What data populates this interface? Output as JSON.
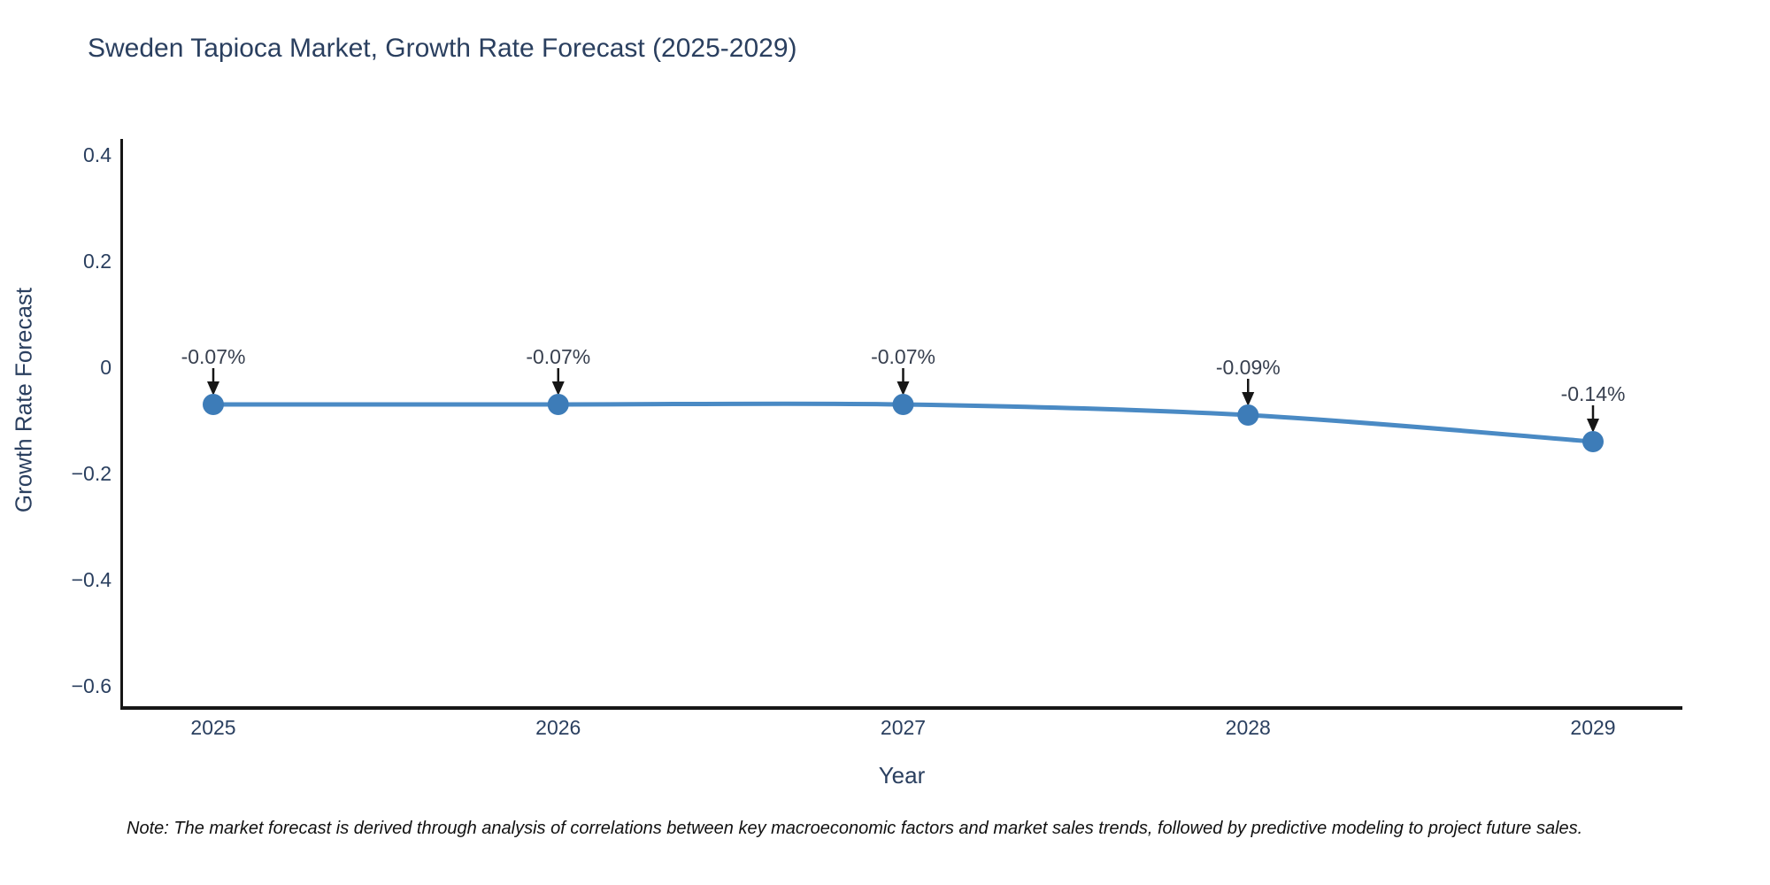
{
  "title": "Sweden Tapioca Market, Growth Rate Forecast (2025-2029)",
  "footnote": "Note: The market forecast is derived through analysis of correlations between key macroeconomic factors and market sales trends, followed by predictive modeling to project future sales.",
  "chart_data": {
    "type": "line",
    "title": "Sweden Tapioca Market, Growth Rate Forecast (2025-2029)",
    "xlabel": "Year",
    "ylabel": "Growth Rate Forecast",
    "categories": [
      2025,
      2026,
      2027,
      2028,
      2029
    ],
    "series": [
      {
        "name": "Growth Rate Forecast",
        "values": [
          -0.07,
          -0.07,
          -0.07,
          -0.09,
          -0.14
        ],
        "labels": [
          "-0.07%",
          "-0.07%",
          "-0.07%",
          "-0.09%",
          "-0.14%"
        ]
      }
    ],
    "x_tick_labels": [
      "2025",
      "2026",
      "2027",
      "2028",
      "2029"
    ],
    "y_tick_labels": [
      "0.4",
      "0.2",
      "0",
      "−0.2",
      "−0.4",
      "−0.6"
    ],
    "y_tick_values": [
      0.4,
      0.2,
      0,
      -0.2,
      -0.4,
      -0.6
    ],
    "ylim": [
      -0.64,
      0.43
    ],
    "grid": false,
    "legend": false,
    "annotation_arrow": "down",
    "colors": {
      "line": "#4a8ac4",
      "marker": "#3d7cb8",
      "axis": "#161616",
      "text": "#2a3f5f",
      "annotation_text": "#38404f",
      "note_text": "#111111"
    }
  }
}
